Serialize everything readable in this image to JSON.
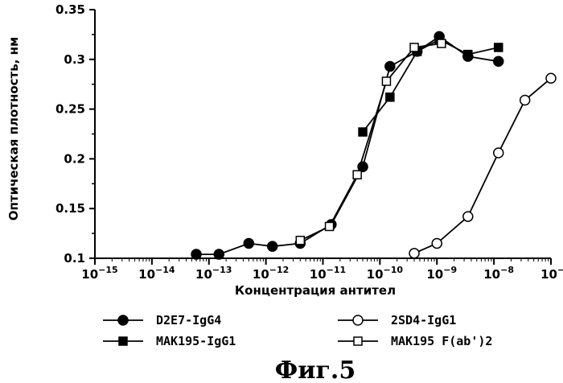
{
  "figure_caption": "Фиг.5",
  "chart_data": {
    "type": "scatter",
    "xscale": "log",
    "xlabel": "Концентрация антител",
    "ylabel": "Оптическая плотность, нм",
    "xlim": [
      1e-15,
      1e-07
    ],
    "ylim": [
      0.1,
      0.35
    ],
    "x_ticks": [
      {
        "base": "10",
        "exp": "−15"
      },
      {
        "base": "10",
        "exp": "−14"
      },
      {
        "base": "10",
        "exp": "−13"
      },
      {
        "base": "10",
        "exp": "−12"
      },
      {
        "base": "10",
        "exp": "−11"
      },
      {
        "base": "10",
        "exp": "−10"
      },
      {
        "base": "10",
        "exp": "−9"
      },
      {
        "base": "10",
        "exp": "−8"
      },
      {
        "base": "10",
        "exp": "−7"
      }
    ],
    "y_ticks": [
      "0.1",
      "0.15",
      "0.2",
      "0.25",
      "0.3",
      "0.35"
    ],
    "grid": false,
    "legend_position": "bottom",
    "series": [
      {
        "name": "D2E7-IgG4",
        "marker": "filled-circle",
        "x": [
          6e-14,
          1.5e-13,
          5e-13,
          1.3e-12,
          4e-12,
          1.4e-11,
          5e-11,
          1.5e-10,
          4.5e-10,
          1.1e-09,
          3.5e-09,
          1.2e-08
        ],
        "y": [
          0.104,
          0.104,
          0.115,
          0.112,
          0.115,
          0.134,
          0.192,
          0.293,
          0.308,
          0.323,
          0.303,
          0.298
        ]
      },
      {
        "name": "MAK195-IgG1",
        "marker": "filled-square",
        "x": [
          5e-11,
          1.5e-10,
          4.5e-10,
          1.1e-09,
          3.5e-09,
          1.2e-08
        ],
        "y": [
          0.227,
          0.262,
          0.308,
          0.32,
          0.305,
          0.312
        ]
      },
      {
        "name": "2SD4-IgG1",
        "marker": "open-circle",
        "x": [
          4e-10,
          1e-09,
          3.5e-09,
          1.2e-08,
          3.5e-08,
          1e-07
        ],
        "y": [
          0.105,
          0.115,
          0.142,
          0.206,
          0.259,
          0.281
        ]
      },
      {
        "name": "MAK195 F(ab')2",
        "marker": "open-square",
        "x": [
          4e-12,
          1.3e-11,
          4e-11,
          1.3e-10,
          4e-10,
          1.2e-09
        ],
        "y": [
          0.118,
          0.132,
          0.184,
          0.278,
          0.312,
          0.316
        ]
      }
    ]
  }
}
